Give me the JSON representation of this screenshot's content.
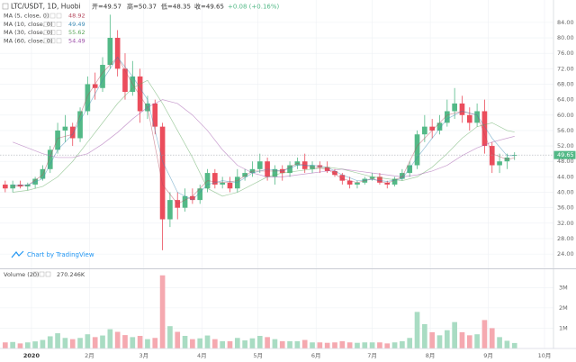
{
  "chart_data": {
    "type": "candlestick",
    "title": "LTC/USDT, 1D, Huobi",
    "header": {
      "open": "开=49.57",
      "high": "高=50.37",
      "low": "低=48.35",
      "close": "收=49.65",
      "change": "+0.08 (+0.16%)"
    },
    "x": [
      -14,
      -10,
      -6,
      -2,
      2,
      6,
      10,
      14,
      18,
      22,
      26,
      30,
      34,
      38,
      42,
      46,
      50,
      54,
      58,
      62,
      66,
      70,
      74,
      78,
      82,
      86,
      90,
      94,
      98,
      102,
      106,
      110,
      114,
      118,
      122,
      126,
      130,
      134,
      138,
      142,
      146,
      150,
      154,
      158,
      162,
      166,
      170,
      174,
      178,
      182,
      186,
      190,
      194,
      198,
      202,
      206,
      210,
      214,
      218,
      222,
      226,
      230,
      234,
      238,
      242,
      246,
      250,
      254,
      258
    ],
    "open": [
      42,
      41,
      42,
      41.5,
      42,
      43.5,
      46,
      51,
      56,
      57,
      54,
      61,
      68,
      67,
      73,
      80,
      72,
      66,
      70,
      61,
      63,
      57,
      33,
      38,
      36,
      39,
      38,
      41,
      45,
      42,
      42.5,
      41,
      44,
      45,
      46,
      48,
      44,
      46,
      45,
      47,
      48,
      46,
      47,
      46.5,
      45.5,
      44.5,
      43,
      42,
      42.5,
      43.5,
      44,
      42.5,
      42,
      43.5,
      45,
      47,
      55,
      57,
      56,
      58,
      61,
      63,
      60,
      58,
      61,
      52,
      47,
      48,
      49.57
    ],
    "high": [
      43,
      43,
      43,
      42.5,
      44,
      47,
      52,
      58,
      60,
      58,
      62,
      70,
      71,
      75,
      86,
      82,
      76,
      74,
      72,
      65,
      64,
      58,
      40,
      40,
      41,
      41,
      42,
      46,
      46,
      44,
      44,
      46,
      46,
      48,
      50,
      49,
      47,
      47,
      48,
      49,
      50,
      48,
      48,
      48,
      46,
      45,
      44,
      43,
      44,
      45,
      45,
      43,
      44,
      46,
      48,
      56,
      60,
      59,
      60,
      64,
      67,
      65,
      62,
      63,
      64,
      53,
      50,
      50,
      50.37
    ],
    "low": [
      40,
      40,
      41,
      40.5,
      41,
      43,
      45,
      50,
      53,
      52,
      53,
      60,
      64,
      66,
      72,
      70,
      64,
      65,
      58,
      59,
      55,
      25,
      31,
      33,
      35,
      37,
      37,
      40,
      41,
      41,
      40,
      40,
      43,
      44,
      45,
      43,
      42,
      43,
      44,
      46,
      45,
      45,
      45,
      45,
      44,
      42,
      41,
      41,
      42,
      43,
      42,
      41,
      41.5,
      43,
      44,
      46,
      53,
      54,
      55,
      57,
      59,
      58,
      56,
      57,
      50,
      45,
      45,
      46,
      48.35
    ],
    "close": [
      41,
      42,
      41.5,
      42,
      43.5,
      46,
      51,
      56,
      57,
      54,
      61,
      68,
      67,
      73,
      80,
      72,
      66,
      70,
      61,
      63,
      57,
      33,
      38,
      36,
      39,
      38,
      41,
      45,
      42,
      42.5,
      41,
      44,
      45,
      46,
      48,
      44,
      46,
      45,
      47,
      48,
      46,
      47,
      46.5,
      45.5,
      44.5,
      43,
      42,
      42.5,
      43.5,
      44,
      42.5,
      42,
      43.5,
      45,
      47,
      55,
      57,
      56,
      58,
      61,
      63,
      60,
      58,
      61,
      52,
      47,
      48,
      49,
      49.65
    ],
    "up_color": "#53b987",
    "down_color": "#eb4d5c",
    "xlim": [
      -16.8,
      278.8
    ],
    "xticks": [
      {
        "value": 0,
        "label": "2020"
      },
      {
        "value": 31,
        "label": "2月"
      },
      {
        "value": 60,
        "label": "3月"
      },
      {
        "value": 91,
        "label": "4月"
      },
      {
        "value": 121,
        "label": "5月"
      },
      {
        "value": 152,
        "label": "6月"
      },
      {
        "value": 182,
        "label": "7月"
      },
      {
        "value": 213,
        "label": "8月"
      },
      {
        "value": 244,
        "label": "9月"
      },
      {
        "value": 274,
        "label": "10月"
      }
    ],
    "ylim": [
      20.3,
      89.8
    ],
    "yticks": [
      {
        "value": 24,
        "label": "24.00"
      },
      {
        "value": 28,
        "label": "28.00"
      },
      {
        "value": 32,
        "label": "32.00"
      },
      {
        "value": 36,
        "label": "36.00"
      },
      {
        "value": 40,
        "label": "40.00"
      },
      {
        "value": 44,
        "label": "44.00"
      },
      {
        "value": 48,
        "label": "48.00"
      },
      {
        "value": 52,
        "label": "52.00"
      },
      {
        "value": 56,
        "label": "56.00"
      },
      {
        "value": 60,
        "label": "60.00"
      },
      {
        "value": 64,
        "label": "64.00"
      },
      {
        "value": 68,
        "label": "68.00"
      },
      {
        "value": 72,
        "label": "72.00"
      },
      {
        "value": 76,
        "label": "76.00"
      },
      {
        "value": 80,
        "label": "80.00"
      },
      {
        "value": 84,
        "label": "84.00"
      }
    ],
    "grid": true,
    "last_price": 49.65,
    "moving_averages": [
      {
        "name": "MA (5, close, 0)",
        "color": "#b5485d",
        "x": [
          -10,
          -2,
          6,
          14,
          22,
          30,
          38,
          46,
          54,
          62,
          70,
          78,
          86,
          94,
          102,
          110,
          118,
          126,
          134,
          142,
          150,
          158,
          166,
          174,
          182,
          190,
          198,
          206,
          214,
          222,
          230,
          238,
          246,
          254,
          258
        ],
        "values": [
          41.5,
          41.8,
          44.5,
          54,
          55,
          65,
          71,
          75,
          68,
          62,
          42,
          37,
          39,
          43,
          42.5,
          43,
          45.5,
          45.5,
          45.5,
          47.5,
          46.5,
          46,
          43.5,
          42.5,
          43.5,
          42.3,
          44,
          52,
          56,
          60,
          61,
          60,
          50,
          48.5,
          48.92
        ]
      },
      {
        "name": "MA (10, close, 0)",
        "color": "#3d8bb5",
        "x": [
          -10,
          -2,
          6,
          14,
          22,
          30,
          38,
          46,
          54,
          62,
          70,
          78,
          86,
          94,
          102,
          110,
          118,
          126,
          134,
          142,
          150,
          158,
          166,
          174,
          182,
          190,
          198,
          206,
          214,
          222,
          230,
          238,
          246,
          254,
          258
        ],
        "values": [
          41.8,
          41.9,
          43.5,
          51,
          55,
          62,
          69,
          75,
          70,
          64,
          48,
          40,
          38,
          42,
          43,
          42.5,
          45,
          46,
          45.5,
          47,
          47,
          46.5,
          44.5,
          43,
          43.3,
          42.8,
          43.5,
          49,
          54,
          59,
          61,
          60,
          54,
          49.5,
          49.49
        ]
      },
      {
        "name": "MA (30, close, 0)",
        "color": "#5aa55a",
        "x": [
          -10,
          -2,
          6,
          14,
          22,
          30,
          38,
          46,
          54,
          62,
          70,
          78,
          86,
          94,
          102,
          110,
          118,
          126,
          134,
          142,
          150,
          158,
          166,
          174,
          182,
          190,
          198,
          206,
          214,
          222,
          230,
          238,
          246,
          254,
          258
        ],
        "values": [
          40,
          40.5,
          41.5,
          44,
          48,
          53,
          58,
          63,
          67,
          69,
          63,
          56,
          49,
          41,
          39,
          40,
          42,
          44,
          45,
          45.5,
          46,
          46.5,
          46,
          45,
          44,
          43.5,
          43,
          44,
          46.5,
          50,
          54,
          57,
          58,
          56,
          55.62
        ]
      },
      {
        "name": "MA (60, close, 0)",
        "color": "#9c4ea8",
        "x": [
          -10,
          -2,
          6,
          14,
          22,
          30,
          38,
          46,
          54,
          62,
          70,
          78,
          86,
          94,
          102,
          110,
          118,
          126,
          134,
          142,
          150,
          158,
          166,
          174,
          182,
          190,
          198,
          206,
          214,
          222,
          230,
          238,
          246,
          254,
          258
        ],
        "values": [
          53,
          51.5,
          50,
          49,
          49,
          50,
          52.5,
          55.5,
          59,
          62,
          64,
          63,
          60,
          56,
          51,
          47,
          45,
          44,
          44,
          44.5,
          45,
          45.5,
          46,
          45.5,
          45,
          44.5,
          44,
          44.5,
          45.5,
          47,
          49.5,
          51.5,
          53,
          54,
          54.49
        ]
      }
    ],
    "volume": {
      "title": "Volume (20)",
      "value_label": "270.246K",
      "values": [
        300000,
        320000,
        250000,
        300000,
        350000,
        420000,
        600000,
        750000,
        520000,
        460000,
        520000,
        700000,
        560000,
        640000,
        950000,
        820000,
        660000,
        560000,
        620000,
        460000,
        520000,
        3600000,
        1100000,
        820000,
        620000,
        460000,
        500000,
        640000,
        460000,
        360000,
        360000,
        520000,
        400000,
        500000,
        620000,
        560000,
        460000,
        360000,
        360000,
        360000,
        420000,
        300000,
        300000,
        280000,
        300000,
        360000,
        300000,
        280000,
        300000,
        300000,
        300000,
        250000,
        300000,
        360000,
        520000,
        1800000,
        1200000,
        800000,
        650000,
        900000,
        1300000,
        800000,
        650000,
        700000,
        1400000,
        1000000,
        560000,
        380000,
        270246
      ],
      "up_color": "#a9dcc3",
      "down_color": "#f5a9b0",
      "ylim": [
        0,
        3900000
      ],
      "yticks": [
        {
          "value": 1000000,
          "label": "1M"
        },
        {
          "value": 2000000,
          "label": "2M"
        },
        {
          "value": 3000000,
          "label": "3M"
        }
      ]
    },
    "attribution": "Chart by TradingView"
  }
}
